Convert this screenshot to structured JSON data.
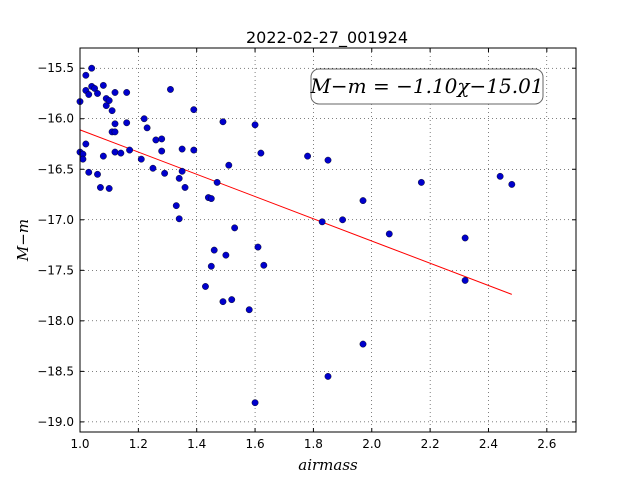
{
  "chart_data": {
    "type": "scatter",
    "title": "2022-02-27_001924",
    "xlabel": "airmass",
    "ylabel": "M−m",
    "xlim": [
      1.0,
      2.7
    ],
    "ylim": [
      -19.1,
      -15.3
    ],
    "y_inverted": true,
    "grid": true,
    "x_ticks": [
      1.0,
      1.2,
      1.4,
      1.6,
      1.8,
      2.0,
      2.2,
      2.4,
      2.6
    ],
    "x_tick_labels": [
      "1.0",
      "1.2",
      "1.4",
      "1.6",
      "1.8",
      "2.0",
      "2.2",
      "2.4",
      "2.6"
    ],
    "y_ticks": [
      -15.5,
      -16.0,
      -16.5,
      -17.0,
      -17.5,
      -18.0,
      -18.5,
      -19.0
    ],
    "y_tick_labels": [
      "−15.5",
      "−16.0",
      "−16.5",
      "−17.0",
      "−17.5",
      "−18.0",
      "−18.5",
      "−19.0"
    ],
    "annotation": "M−m = −1.10χ−15.01",
    "fit": {
      "slope": -1.1,
      "intercept": -15.01,
      "x_range": [
        1.0,
        2.48
      ],
      "color": "#ff0000"
    },
    "marker_color": "#0000cc",
    "points": [
      {
        "x": 1.0,
        "y": -15.83
      },
      {
        "x": 1.0,
        "y": -16.33
      },
      {
        "x": 1.01,
        "y": -16.35
      },
      {
        "x": 1.01,
        "y": -16.4
      },
      {
        "x": 1.02,
        "y": -15.57
      },
      {
        "x": 1.02,
        "y": -15.72
      },
      {
        "x": 1.02,
        "y": -16.25
      },
      {
        "x": 1.03,
        "y": -15.76
      },
      {
        "x": 1.03,
        "y": -16.53
      },
      {
        "x": 1.04,
        "y": -15.5
      },
      {
        "x": 1.04,
        "y": -15.68
      },
      {
        "x": 1.05,
        "y": -15.7
      },
      {
        "x": 1.06,
        "y": -15.75
      },
      {
        "x": 1.06,
        "y": -16.55
      },
      {
        "x": 1.07,
        "y": -16.68
      },
      {
        "x": 1.08,
        "y": -15.67
      },
      {
        "x": 1.08,
        "y": -16.37
      },
      {
        "x": 1.09,
        "y": -15.8
      },
      {
        "x": 1.09,
        "y": -15.87
      },
      {
        "x": 1.1,
        "y": -15.82
      },
      {
        "x": 1.1,
        "y": -16.69
      },
      {
        "x": 1.11,
        "y": -15.92
      },
      {
        "x": 1.11,
        "y": -16.13
      },
      {
        "x": 1.12,
        "y": -15.74
      },
      {
        "x": 1.12,
        "y": -16.05
      },
      {
        "x": 1.12,
        "y": -16.13
      },
      {
        "x": 1.12,
        "y": -16.33
      },
      {
        "x": 1.14,
        "y": -16.34
      },
      {
        "x": 1.16,
        "y": -15.74
      },
      {
        "x": 1.16,
        "y": -16.04
      },
      {
        "x": 1.17,
        "y": -16.31
      },
      {
        "x": 1.21,
        "y": -16.4
      },
      {
        "x": 1.22,
        "y": -16.0
      },
      {
        "x": 1.23,
        "y": -16.09
      },
      {
        "x": 1.25,
        "y": -16.49
      },
      {
        "x": 1.26,
        "y": -16.21
      },
      {
        "x": 1.28,
        "y": -16.2
      },
      {
        "x": 1.28,
        "y": -16.32
      },
      {
        "x": 1.29,
        "y": -16.54
      },
      {
        "x": 1.31,
        "y": -15.71
      },
      {
        "x": 1.33,
        "y": -16.86
      },
      {
        "x": 1.34,
        "y": -16.99
      },
      {
        "x": 1.34,
        "y": -16.59
      },
      {
        "x": 1.35,
        "y": -16.52
      },
      {
        "x": 1.35,
        "y": -16.3
      },
      {
        "x": 1.36,
        "y": -16.68
      },
      {
        "x": 1.39,
        "y": -15.91
      },
      {
        "x": 1.39,
        "y": -16.31
      },
      {
        "x": 1.43,
        "y": -17.66
      },
      {
        "x": 1.44,
        "y": -16.78
      },
      {
        "x": 1.45,
        "y": -16.79
      },
      {
        "x": 1.45,
        "y": -17.46
      },
      {
        "x": 1.46,
        "y": -17.3
      },
      {
        "x": 1.47,
        "y": -16.63
      },
      {
        "x": 1.49,
        "y": -16.03
      },
      {
        "x": 1.49,
        "y": -17.81
      },
      {
        "x": 1.5,
        "y": -17.35
      },
      {
        "x": 1.51,
        "y": -16.46
      },
      {
        "x": 1.52,
        "y": -17.79
      },
      {
        "x": 1.53,
        "y": -17.08
      },
      {
        "x": 1.58,
        "y": -17.89
      },
      {
        "x": 1.6,
        "y": -16.06
      },
      {
        "x": 1.6,
        "y": -18.81
      },
      {
        "x": 1.61,
        "y": -17.27
      },
      {
        "x": 1.62,
        "y": -16.34
      },
      {
        "x": 1.63,
        "y": -17.45
      },
      {
        "x": 1.78,
        "y": -16.37
      },
      {
        "x": 1.83,
        "y": -17.02
      },
      {
        "x": 1.85,
        "y": -16.41
      },
      {
        "x": 1.85,
        "y": -18.55
      },
      {
        "x": 1.9,
        "y": -17.0
      },
      {
        "x": 1.97,
        "y": -16.81
      },
      {
        "x": 1.97,
        "y": -18.23
      },
      {
        "x": 2.06,
        "y": -17.14
      },
      {
        "x": 2.17,
        "y": -16.63
      },
      {
        "x": 2.32,
        "y": -17.18
      },
      {
        "x": 2.32,
        "y": -17.6
      },
      {
        "x": 2.44,
        "y": -16.57
      },
      {
        "x": 2.48,
        "y": -16.65
      }
    ]
  }
}
